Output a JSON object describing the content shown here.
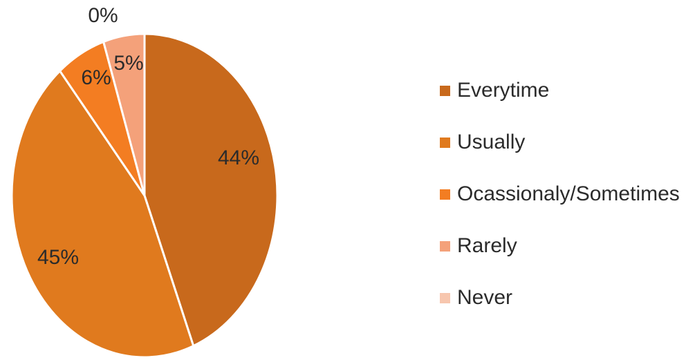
{
  "chart_data": {
    "type": "pie",
    "categories": [
      "Everytime",
      "Usually",
      "Ocassionaly/Sometimes",
      "Rarely",
      "Never"
    ],
    "values": [
      44,
      45,
      6,
      5,
      0
    ],
    "data_labels": [
      "44%",
      "45%",
      "6%",
      "5%",
      "0%"
    ],
    "colors": [
      "#c8691c",
      "#e07a1e",
      "#f37d22",
      "#f4a17a",
      "#f7c6ae"
    ],
    "legend_position": "right"
  }
}
